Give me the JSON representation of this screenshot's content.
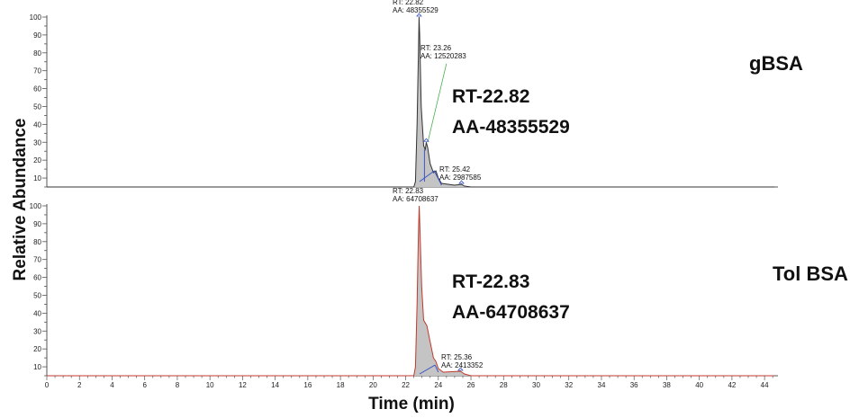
{
  "chart_data": {
    "type": "line",
    "xlabel": "Time (min)",
    "ylabel": "Relative Abundance",
    "xlim": [
      0,
      44.6
    ],
    "xticks": [
      0,
      2,
      4,
      6,
      8,
      10,
      12,
      14,
      16,
      18,
      20,
      22,
      24,
      26,
      28,
      30,
      32,
      34,
      36,
      38,
      40,
      42,
      44
    ],
    "grid": false,
    "panels": [
      {
        "sample_label": "gBSA",
        "ylim": [
          5,
          100
        ],
        "yticks": [
          10,
          20,
          30,
          40,
          50,
          60,
          70,
          80,
          90,
          100
        ],
        "line_color": "#333333",
        "series": {
          "x": [
            0,
            22.5,
            22.6,
            22.7,
            22.78,
            22.82,
            22.86,
            22.95,
            23.1,
            23.2,
            23.26,
            23.35,
            23.5,
            23.7,
            23.85,
            24.0,
            24.2,
            25.0,
            25.42,
            25.6,
            26,
            44.6
          ],
          "y": [
            5,
            5,
            8,
            40,
            80,
            100,
            90,
            50,
            28,
            26,
            30,
            27,
            18,
            13,
            14,
            10,
            7,
            6,
            6.5,
            5.5,
            5,
            5
          ]
        },
        "peaks": [
          {
            "rt_label": "RT: 22.82",
            "aa_label": "AA: 48355529",
            "x": 22.82,
            "y": 100
          },
          {
            "rt_label": "RT: 23.26",
            "aa_label": "AA: 12520283",
            "x": 23.26,
            "y": 30
          },
          {
            "rt_label": "RT: 25.42",
            "aa_label": "AA: 2987585",
            "x": 25.42,
            "y": 6.5
          }
        ],
        "big_rt": "RT-22.82",
        "big_aa": "AA-48355529"
      },
      {
        "sample_label": "Tol BSA",
        "ylim": [
          5,
          100
        ],
        "yticks": [
          10,
          20,
          30,
          40,
          50,
          60,
          70,
          80,
          90,
          100
        ],
        "line_color": "#c0392b",
        "series": {
          "x": [
            0,
            22.5,
            22.6,
            22.7,
            22.78,
            22.83,
            22.88,
            22.98,
            23.1,
            23.3,
            23.5,
            23.7,
            23.85,
            24.0,
            24.3,
            25.36,
            25.6,
            26,
            44.6
          ],
          "y": [
            5,
            5,
            10,
            45,
            85,
            100,
            85,
            55,
            36,
            33,
            24,
            15,
            13,
            9,
            7,
            7.5,
            6,
            5,
            5
          ]
        },
        "peaks": [
          {
            "rt_label": "RT: 22.83",
            "aa_label": "AA: 64708637",
            "x": 22.83,
            "y": 100
          },
          {
            "rt_label": "RT: 25.36",
            "aa_label": "AA: 2413352",
            "x": 25.36,
            "y": 7.5
          }
        ],
        "big_rt": "RT-22.83",
        "big_aa": "AA-64708637"
      }
    ]
  }
}
